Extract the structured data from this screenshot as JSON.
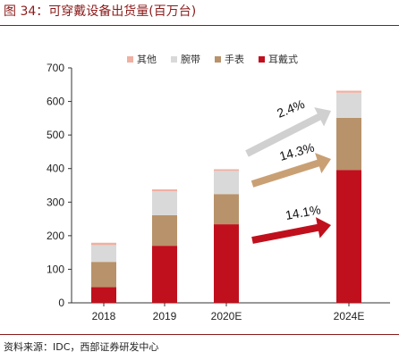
{
  "figure_title": "图 34：可穿戴设备出货量(百万台)",
  "source_note": "资料来源：IDC，西部证券研发中心",
  "chart_data": {
    "type": "bar",
    "stacked": true,
    "title": "",
    "xlabel": "",
    "ylabel": "",
    "ylim": [
      0,
      700
    ],
    "yticks": [
      0,
      100,
      200,
      300,
      400,
      500,
      600,
      700
    ],
    "grid": false,
    "legend_position": "top",
    "categories": [
      "2018",
      "2019",
      "2020E",
      "2024E"
    ],
    "series": [
      {
        "name": "耳戴式",
        "color": "#c0101d",
        "values": [
          47,
          170,
          234,
          396
        ]
      },
      {
        "name": "手表",
        "color": "#b8926a",
        "values": [
          75,
          91,
          90,
          155
        ]
      },
      {
        "name": "腕带",
        "color": "#d9d9d9",
        "values": [
          50,
          71,
          69,
          75
        ]
      },
      {
        "name": "其他",
        "color": "#f0b0a2",
        "values": [
          7,
          6,
          5,
          6
        ]
      }
    ],
    "legend_order": [
      "其他",
      "腕带",
      "手表",
      "耳戴式"
    ],
    "annotations": [
      {
        "text": "2.4%",
        "series": "腕带",
        "color": "#d0d0d0"
      },
      {
        "text": "14.3%",
        "series": "手表",
        "color": "#c9a074"
      },
      {
        "text": "14.1%",
        "series": "耳戴式",
        "color": "#c0101d"
      }
    ]
  }
}
